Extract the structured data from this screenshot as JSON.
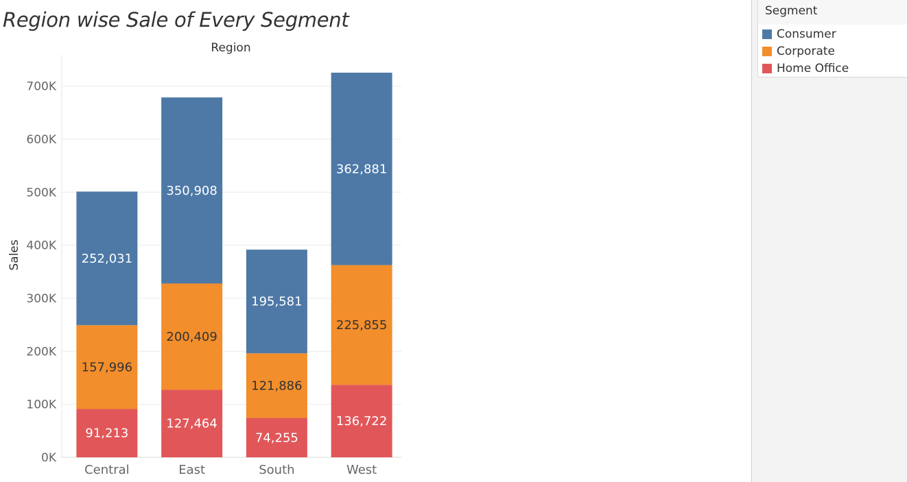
{
  "title": "Region wise Sale of Every Segment",
  "legend": {
    "title": "Segment",
    "items": [
      {
        "label": "Consumer",
        "color": "#4e79a7"
      },
      {
        "label": "Corporate",
        "color": "#f28e2b"
      },
      {
        "label": "Home Office",
        "color": "#e15759"
      }
    ]
  },
  "chart_data": {
    "type": "bar",
    "stacked": true,
    "column_header": "Region",
    "ylabel": "Sales",
    "xlabel": "",
    "categories": [
      "Central",
      "East",
      "South",
      "West"
    ],
    "series": [
      {
        "name": "Home Office",
        "color": "#e15759",
        "values": [
          91213,
          127464,
          74255,
          136722
        ],
        "labels": [
          "91,213",
          "127,464",
          "74,255",
          "136,722"
        ]
      },
      {
        "name": "Corporate",
        "color": "#f28e2b",
        "values": [
          157996,
          200409,
          121886,
          225855
        ],
        "labels": [
          "157,996",
          "200,409",
          "121,886",
          "225,855"
        ]
      },
      {
        "name": "Consumer",
        "color": "#4e79a7",
        "values": [
          252031,
          350908,
          195581,
          362881
        ],
        "labels": [
          "252,031",
          "350,908",
          "195,581",
          "362,881"
        ]
      }
    ],
    "ylim": [
      0,
      725469
    ],
    "yticks": [
      0,
      100000,
      200000,
      300000,
      400000,
      500000,
      600000,
      700000
    ],
    "ytick_labels": [
      "0K",
      "100K",
      "200K",
      "300K",
      "400K",
      "500K",
      "600K",
      "700K"
    ],
    "grid": true
  }
}
